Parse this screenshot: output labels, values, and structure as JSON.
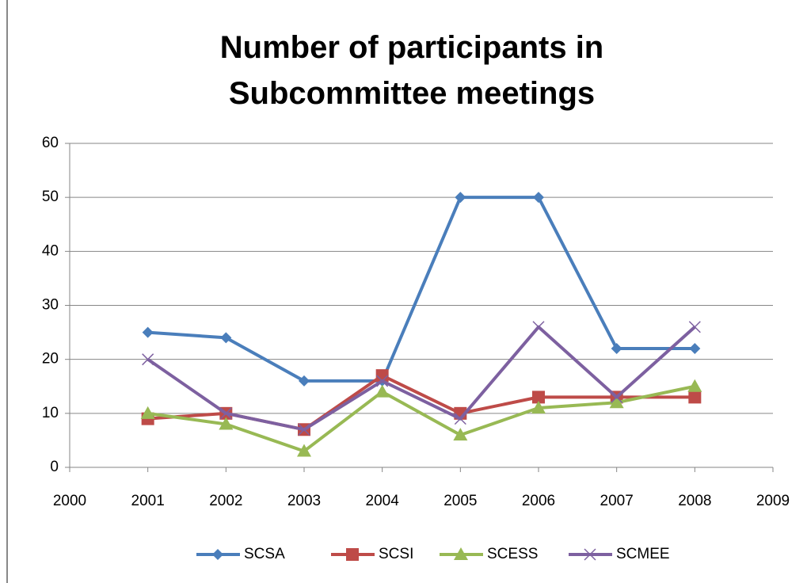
{
  "chart_data": {
    "type": "line",
    "title": "Number of participants in Subcommittee meetings",
    "x": [
      2001,
      2002,
      2003,
      2004,
      2005,
      2006,
      2007,
      2008
    ],
    "series": [
      {
        "name": "SCSA",
        "color": "#4a7ebb",
        "marker": "diamond",
        "values": [
          25,
          24,
          16,
          16,
          50,
          50,
          22,
          22
        ]
      },
      {
        "name": "SCSI",
        "color": "#be4b48",
        "marker": "square",
        "values": [
          9,
          10,
          7,
          17,
          10,
          13,
          13,
          13
        ]
      },
      {
        "name": "SCESS",
        "color": "#98b954",
        "marker": "triangle",
        "values": [
          10,
          8,
          3,
          14,
          6,
          11,
          12,
          15
        ]
      },
      {
        "name": "SCMEE",
        "color": "#7d60a0",
        "marker": "x",
        "values": [
          20,
          10,
          7,
          16,
          9,
          26,
          13,
          26
        ]
      }
    ],
    "xlim": [
      2000,
      2009
    ],
    "xticks": [
      2000,
      2001,
      2002,
      2003,
      2004,
      2005,
      2006,
      2007,
      2008,
      2009
    ],
    "ylim": [
      0,
      60
    ],
    "yticks": [
      0,
      10,
      20,
      30,
      40,
      50,
      60
    ],
    "grid": true,
    "legend": "bottom"
  }
}
